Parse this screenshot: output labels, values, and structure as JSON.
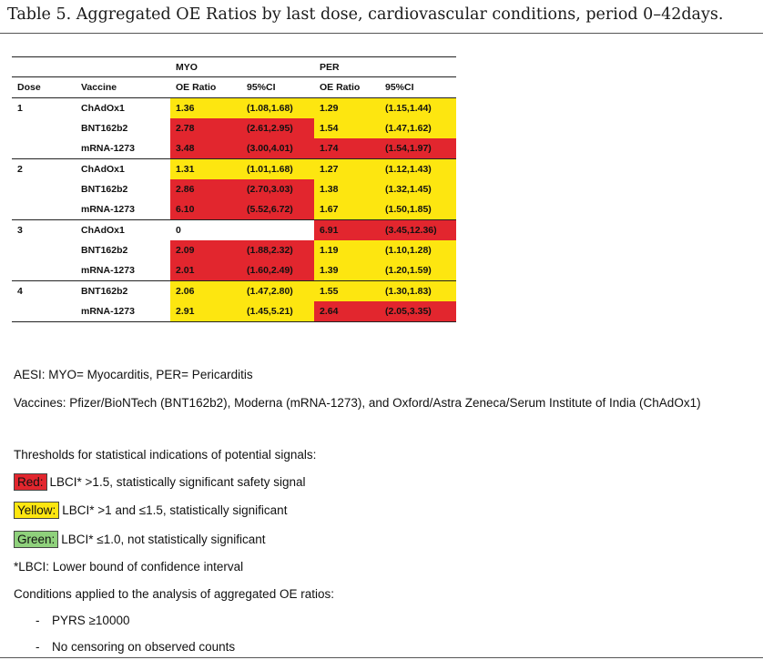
{
  "caption": "Table 5. Aggregated OE Ratios by last dose, cardiovascular conditions, period 0–42days.",
  "table": {
    "group_headers": [
      "MYO",
      "PER"
    ],
    "columns": [
      "Dose",
      "Vaccine",
      "OE Ratio",
      "95%CI",
      "OE Ratio",
      "95%CI"
    ],
    "groups": [
      {
        "dose": "1",
        "rows": [
          {
            "vaccine": "ChAdOx1",
            "myo_oe": "1.36",
            "myo_ci": "(1.08,1.68)",
            "per_oe": "1.29",
            "per_ci": "(1.15,1.44)",
            "myo_color": "yellow",
            "per_color": "yellow"
          },
          {
            "vaccine": "BNT162b2",
            "myo_oe": "2.78",
            "myo_ci": "(2.61,2.95)",
            "per_oe": "1.54",
            "per_ci": "(1.47,1.62)",
            "myo_color": "red",
            "per_color": "yellow"
          },
          {
            "vaccine": "mRNA-1273",
            "myo_oe": "3.48",
            "myo_ci": "(3.00,4.01)",
            "per_oe": "1.74",
            "per_ci": "(1.54,1.97)",
            "myo_color": "red",
            "per_color": "red"
          }
        ]
      },
      {
        "dose": "2",
        "rows": [
          {
            "vaccine": "ChAdOx1",
            "myo_oe": "1.31",
            "myo_ci": "(1.01,1.68)",
            "per_oe": "1.27",
            "per_ci": "(1.12,1.43)",
            "myo_color": "yellow",
            "per_color": "yellow"
          },
          {
            "vaccine": "BNT162b2",
            "myo_oe": "2.86",
            "myo_ci": "(2.70,3.03)",
            "per_oe": "1.38",
            "per_ci": "(1.32,1.45)",
            "myo_color": "red",
            "per_color": "yellow"
          },
          {
            "vaccine": "mRNA-1273",
            "myo_oe": "6.10",
            "myo_ci": "(5.52,6.72)",
            "per_oe": "1.67",
            "per_ci": "(1.50,1.85)",
            "myo_color": "red",
            "per_color": "yellow"
          }
        ]
      },
      {
        "dose": "3",
        "rows": [
          {
            "vaccine": "ChAdOx1",
            "myo_oe": "0",
            "myo_ci": "",
            "per_oe": "6.91",
            "per_ci": "(3.45,12.36)",
            "myo_color": "white",
            "per_color": "red"
          },
          {
            "vaccine": "BNT162b2",
            "myo_oe": "2.09",
            "myo_ci": "(1.88,2.32)",
            "per_oe": "1.19",
            "per_ci": "(1.10,1.28)",
            "myo_color": "red",
            "per_color": "yellow"
          },
          {
            "vaccine": "mRNA-1273",
            "myo_oe": "2.01",
            "myo_ci": "(1.60,2.49)",
            "per_oe": "1.39",
            "per_ci": "(1.20,1.59)",
            "myo_color": "red",
            "per_color": "yellow"
          }
        ]
      },
      {
        "dose": "4",
        "rows": [
          {
            "vaccine": "BNT162b2",
            "myo_oe": "2.06",
            "myo_ci": "(1.47,2.80)",
            "per_oe": "1.55",
            "per_ci": "(1.30,1.83)",
            "myo_color": "yellow",
            "per_color": "yellow"
          },
          {
            "vaccine": "mRNA-1273",
            "myo_oe": "2.91",
            "myo_ci": "(1.45,5.21)",
            "per_oe": "2.64",
            "per_ci": "(2.05,3.35)",
            "myo_color": "yellow",
            "per_color": "red"
          }
        ]
      }
    ]
  },
  "notes": {
    "aesi": "AESI: MYO= Myocarditis, PER= Pericarditis",
    "vaccines": "Vaccines: Pfizer/BioNTech (BNT162b2), Moderna (mRNA-1273), and Oxford/Astra Zeneca/Serum Institute of India (ChAdOx1)",
    "thresholds_title": "Thresholds for statistical indications of potential signals:",
    "red_label": "Red:",
    "red_text": "LBCI* >1.5, statistically significant safety signal",
    "yellow_label": "Yellow:",
    "yellow_text": "LBCI* >1 and ≤1.5, statistically significant",
    "green_label": "Green:",
    "green_text": "LBCI* ≤1.0, not statistically significant",
    "lbci": "*LBCI: Lower bound of confidence interval",
    "conditions_title": "Conditions applied to the analysis of aggregated OE ratios:",
    "bullet_glyph": "-",
    "conditions": [
      "PYRS ≥10000",
      "No censoring on observed counts"
    ]
  },
  "colors": {
    "red": "#e2262e",
    "yellow": "#fde610",
    "green": "#8fd17c"
  }
}
